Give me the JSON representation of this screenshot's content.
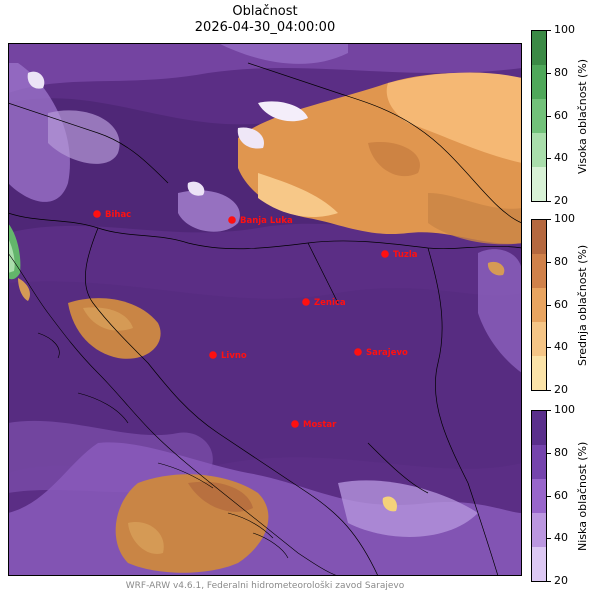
{
  "title": "Oblačnost",
  "timestamp": "2026-04-30_04:00:00",
  "credit": "WRF-ARW v4.6.1, Federalni hidrometeorološki zavod Sarajevo",
  "cities": [
    {
      "name": "Bihac"
    },
    {
      "name": "Banja Luka"
    },
    {
      "name": "Tuzla"
    },
    {
      "name": "Zenica"
    },
    {
      "name": "Livno"
    },
    {
      "name": "Sarajevo"
    },
    {
      "name": "Mostar"
    }
  ],
  "colorbars": {
    "high": {
      "label": "Visoka oblačnost (%)",
      "ticks": [
        "100",
        "80",
        "60",
        "40",
        "20"
      ],
      "colors": [
        "#3b8a45",
        "#4fa85a",
        "#72c27a",
        "#a9deab",
        "#d8f2d6"
      ]
    },
    "mid": {
      "label": "Srednja oblačnost (%)",
      "ticks": [
        "100",
        "80",
        "60",
        "40",
        "20"
      ],
      "colors": [
        "#b5683f",
        "#d0814a",
        "#e8a460",
        "#f5c586",
        "#fbe3a8"
      ]
    },
    "low": {
      "label": "Niska oblačnost (%)",
      "ticks": [
        "100",
        "80",
        "60",
        "40",
        "20"
      ],
      "colors": [
        "#5a2f8c",
        "#7544ad",
        "#9866cb",
        "#bb97e0",
        "#dcc8f3"
      ]
    }
  },
  "colors": {
    "city_marker": "#ff1010",
    "background_cloud": "#5b2e85",
    "border": "#000000"
  }
}
